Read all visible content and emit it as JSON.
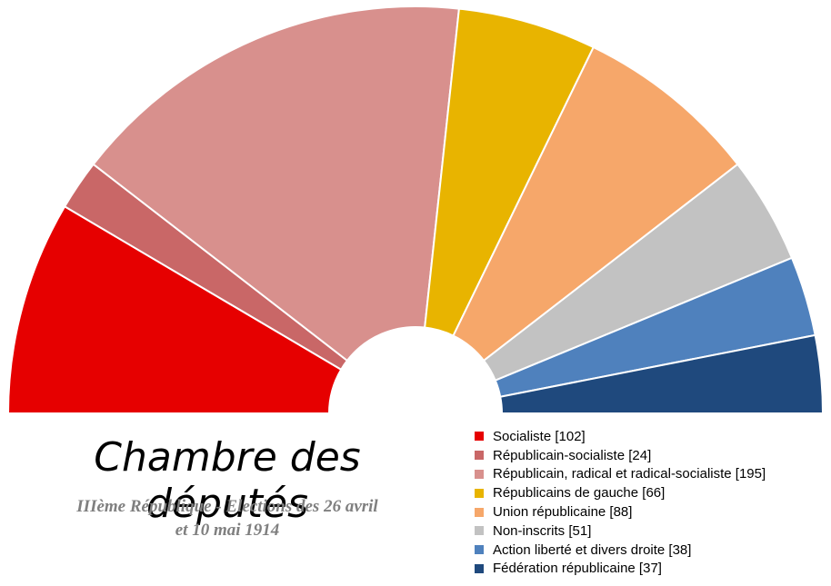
{
  "title": "Chambre des députés",
  "subtitle_line1": "IIIème République - Elections des 26 avril",
  "subtitle_line2": "et 10 mai 1914",
  "chart_data": {
    "type": "pie",
    "variant": "parliament-hemicycle",
    "title": "Chambre des députés",
    "subtitle": "IIIème République - Elections des 26 avril et 10 mai 1914",
    "legend_position": "bottom-right",
    "series": [
      {
        "name": "Socialiste",
        "value": 102,
        "label": "Socialiste [102]",
        "color": "#e60000"
      },
      {
        "name": "Républicain-socialiste",
        "value": 24,
        "label": "Républicain-socialiste [24]",
        "color": "#c96767"
      },
      {
        "name": "Républicain, radical et radical-socialiste",
        "value": 195,
        "label": "Républicain, radical et radical-socialiste [195]",
        "color": "#d8908d"
      },
      {
        "name": "Républicains de gauche",
        "value": 66,
        "label": "Républicains de gauche [66]",
        "color": "#e8b400"
      },
      {
        "name": "Union républicaine",
        "value": 88,
        "label": "Union républicaine [88]",
        "color": "#f6a76a"
      },
      {
        "name": "Non-inscrits",
        "value": 51,
        "label": "Non-inscrits [51]",
        "color": "#c2c2c2"
      },
      {
        "name": "Action liberté et divers droite",
        "value": 38,
        "label": "Action liberté et divers droite [38]",
        "color": "#4f81bd"
      },
      {
        "name": "Fédération républicaine",
        "value": 37,
        "label": "Fédération républicaine [37]",
        "color": "#1f497d"
      }
    ]
  }
}
